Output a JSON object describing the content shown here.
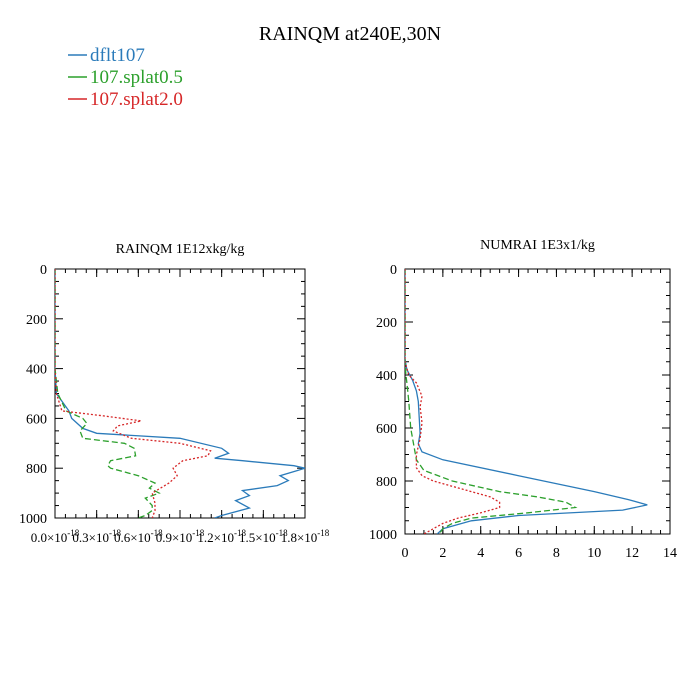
{
  "title": "RAINQM at240E,30N",
  "legend": [
    {
      "name": "dflt107",
      "color": "#2b7bba",
      "dash": "none"
    },
    {
      "name": "107.splat0.5",
      "color": "#2ca02c",
      "dash": "6,3"
    },
    {
      "name": "107.splat2.0",
      "color": "#d62728",
      "dash": "2,2"
    }
  ],
  "chart_data": [
    {
      "type": "line",
      "title": "RAINQM  1E12xkg/kg",
      "xlabel": "",
      "ylabel": "",
      "xlim": [
        0,
        1.8
      ],
      "ylim": [
        1000,
        0
      ],
      "x_ticks": [
        0,
        0.3,
        0.6,
        0.9,
        1.2,
        1.5,
        1.8
      ],
      "x_tick_labels": [
        "0.0×10",
        "0.3×10",
        "0.6×10",
        "0.9×10",
        "1.2×10",
        "1.5×10",
        "1.8×10"
      ],
      "x_tick_exp": "-18",
      "y_ticks": [
        0,
        200,
        400,
        600,
        800,
        1000
      ],
      "y_tick_labels": [
        "0",
        "200",
        "400",
        "600",
        "800",
        "1000"
      ],
      "series": [
        {
          "name": "dflt107",
          "color": "#2b7bba",
          "dash": "none",
          "y": [
            0,
            400,
            500,
            570,
            600,
            640,
            660,
            680,
            720,
            740,
            760,
            770,
            790,
            800,
            810,
            830,
            850,
            870,
            890,
            910,
            930,
            960,
            990,
            1000
          ],
          "x": [
            0,
            0,
            0.01,
            0.1,
            0.12,
            0.2,
            0.3,
            0.9,
            1.2,
            1.25,
            1.15,
            1.35,
            1.72,
            1.8,
            1.74,
            1.62,
            1.68,
            1.6,
            1.35,
            1.4,
            1.3,
            1.4,
            1.2,
            1.15
          ]
        },
        {
          "name": "107.splat0.5",
          "color": "#2ca02c",
          "dash": "6,3",
          "y": [
            0,
            400,
            500,
            570,
            600,
            620,
            650,
            680,
            700,
            720,
            750,
            770,
            790,
            800,
            830,
            860,
            880,
            900,
            920,
            950,
            970,
            990,
            1000
          ],
          "x": [
            0,
            0,
            0.02,
            0.08,
            0.2,
            0.23,
            0.18,
            0.2,
            0.5,
            0.57,
            0.58,
            0.4,
            0.38,
            0.4,
            0.6,
            0.72,
            0.68,
            0.75,
            0.65,
            0.7,
            0.7,
            0.65,
            0.6
          ]
        },
        {
          "name": "107.splat2.0",
          "color": "#d62728",
          "dash": "2,2",
          "y": [
            0,
            400,
            500,
            570,
            590,
            610,
            630,
            650,
            680,
            700,
            730,
            750,
            770,
            800,
            830,
            860,
            900,
            940,
            970,
            1000
          ],
          "x": [
            0,
            0,
            0.01,
            0.05,
            0.35,
            0.62,
            0.45,
            0.42,
            0.55,
            0.9,
            1.12,
            1.1,
            0.92,
            0.85,
            0.88,
            0.82,
            0.7,
            0.72,
            0.72,
            0.7
          ]
        }
      ]
    },
    {
      "type": "line",
      "title": "NUMRAI  1E3x1/kg",
      "xlabel": "",
      "ylabel": "",
      "xlim": [
        0,
        14
      ],
      "ylim": [
        1000,
        0
      ],
      "x_ticks": [
        0,
        2,
        4,
        6,
        8,
        10,
        12,
        14
      ],
      "x_tick_labels": [
        "0",
        "2",
        "4",
        "6",
        "8",
        "10",
        "12",
        "14"
      ],
      "y_ticks": [
        0,
        200,
        400,
        600,
        800,
        1000
      ],
      "y_tick_labels": [
        "0",
        "200",
        "400",
        "600",
        "800",
        "1000"
      ],
      "series": [
        {
          "name": "dflt107",
          "color": "#2b7bba",
          "dash": "none",
          "y": [
            0,
            340,
            380,
            420,
            460,
            500,
            560,
            620,
            660,
            690,
            720,
            780,
            840,
            870,
            890,
            910,
            930,
            950,
            980,
            1000
          ],
          "x": [
            0,
            0,
            0.1,
            0.4,
            0.6,
            0.7,
            0.75,
            0.8,
            0.7,
            0.9,
            2.0,
            6.0,
            10.0,
            11.8,
            12.8,
            11.5,
            6.0,
            3.5,
            2.0,
            1.7
          ]
        },
        {
          "name": "107.splat0.5",
          "color": "#2ca02c",
          "dash": "6,3",
          "y": [
            0,
            350,
            400,
            430,
            500,
            600,
            680,
            720,
            760,
            800,
            840,
            860,
            880,
            900,
            920,
            940,
            960,
            980,
            1000
          ],
          "x": [
            0,
            0,
            0.05,
            0.1,
            0.2,
            0.3,
            0.5,
            0.6,
            1.0,
            2.5,
            5.0,
            7.0,
            8.5,
            9.0,
            6.5,
            3.5,
            2.5,
            2.0,
            1.8
          ]
        },
        {
          "name": "107.splat2.0",
          "color": "#d62728",
          "dash": "2,2",
          "y": [
            0,
            350,
            400,
            430,
            480,
            520,
            580,
            640,
            700,
            750,
            780,
            800,
            820,
            840,
            860,
            880,
            900,
            920,
            940,
            960,
            980,
            1000
          ],
          "x": [
            0,
            0,
            0.2,
            0.6,
            0.9,
            0.8,
            0.9,
            0.8,
            0.6,
            0.6,
            0.9,
            1.5,
            2.5,
            3.5,
            4.5,
            5.0,
            5.0,
            4.0,
            2.8,
            2.0,
            1.5,
            1.0
          ]
        }
      ]
    }
  ]
}
